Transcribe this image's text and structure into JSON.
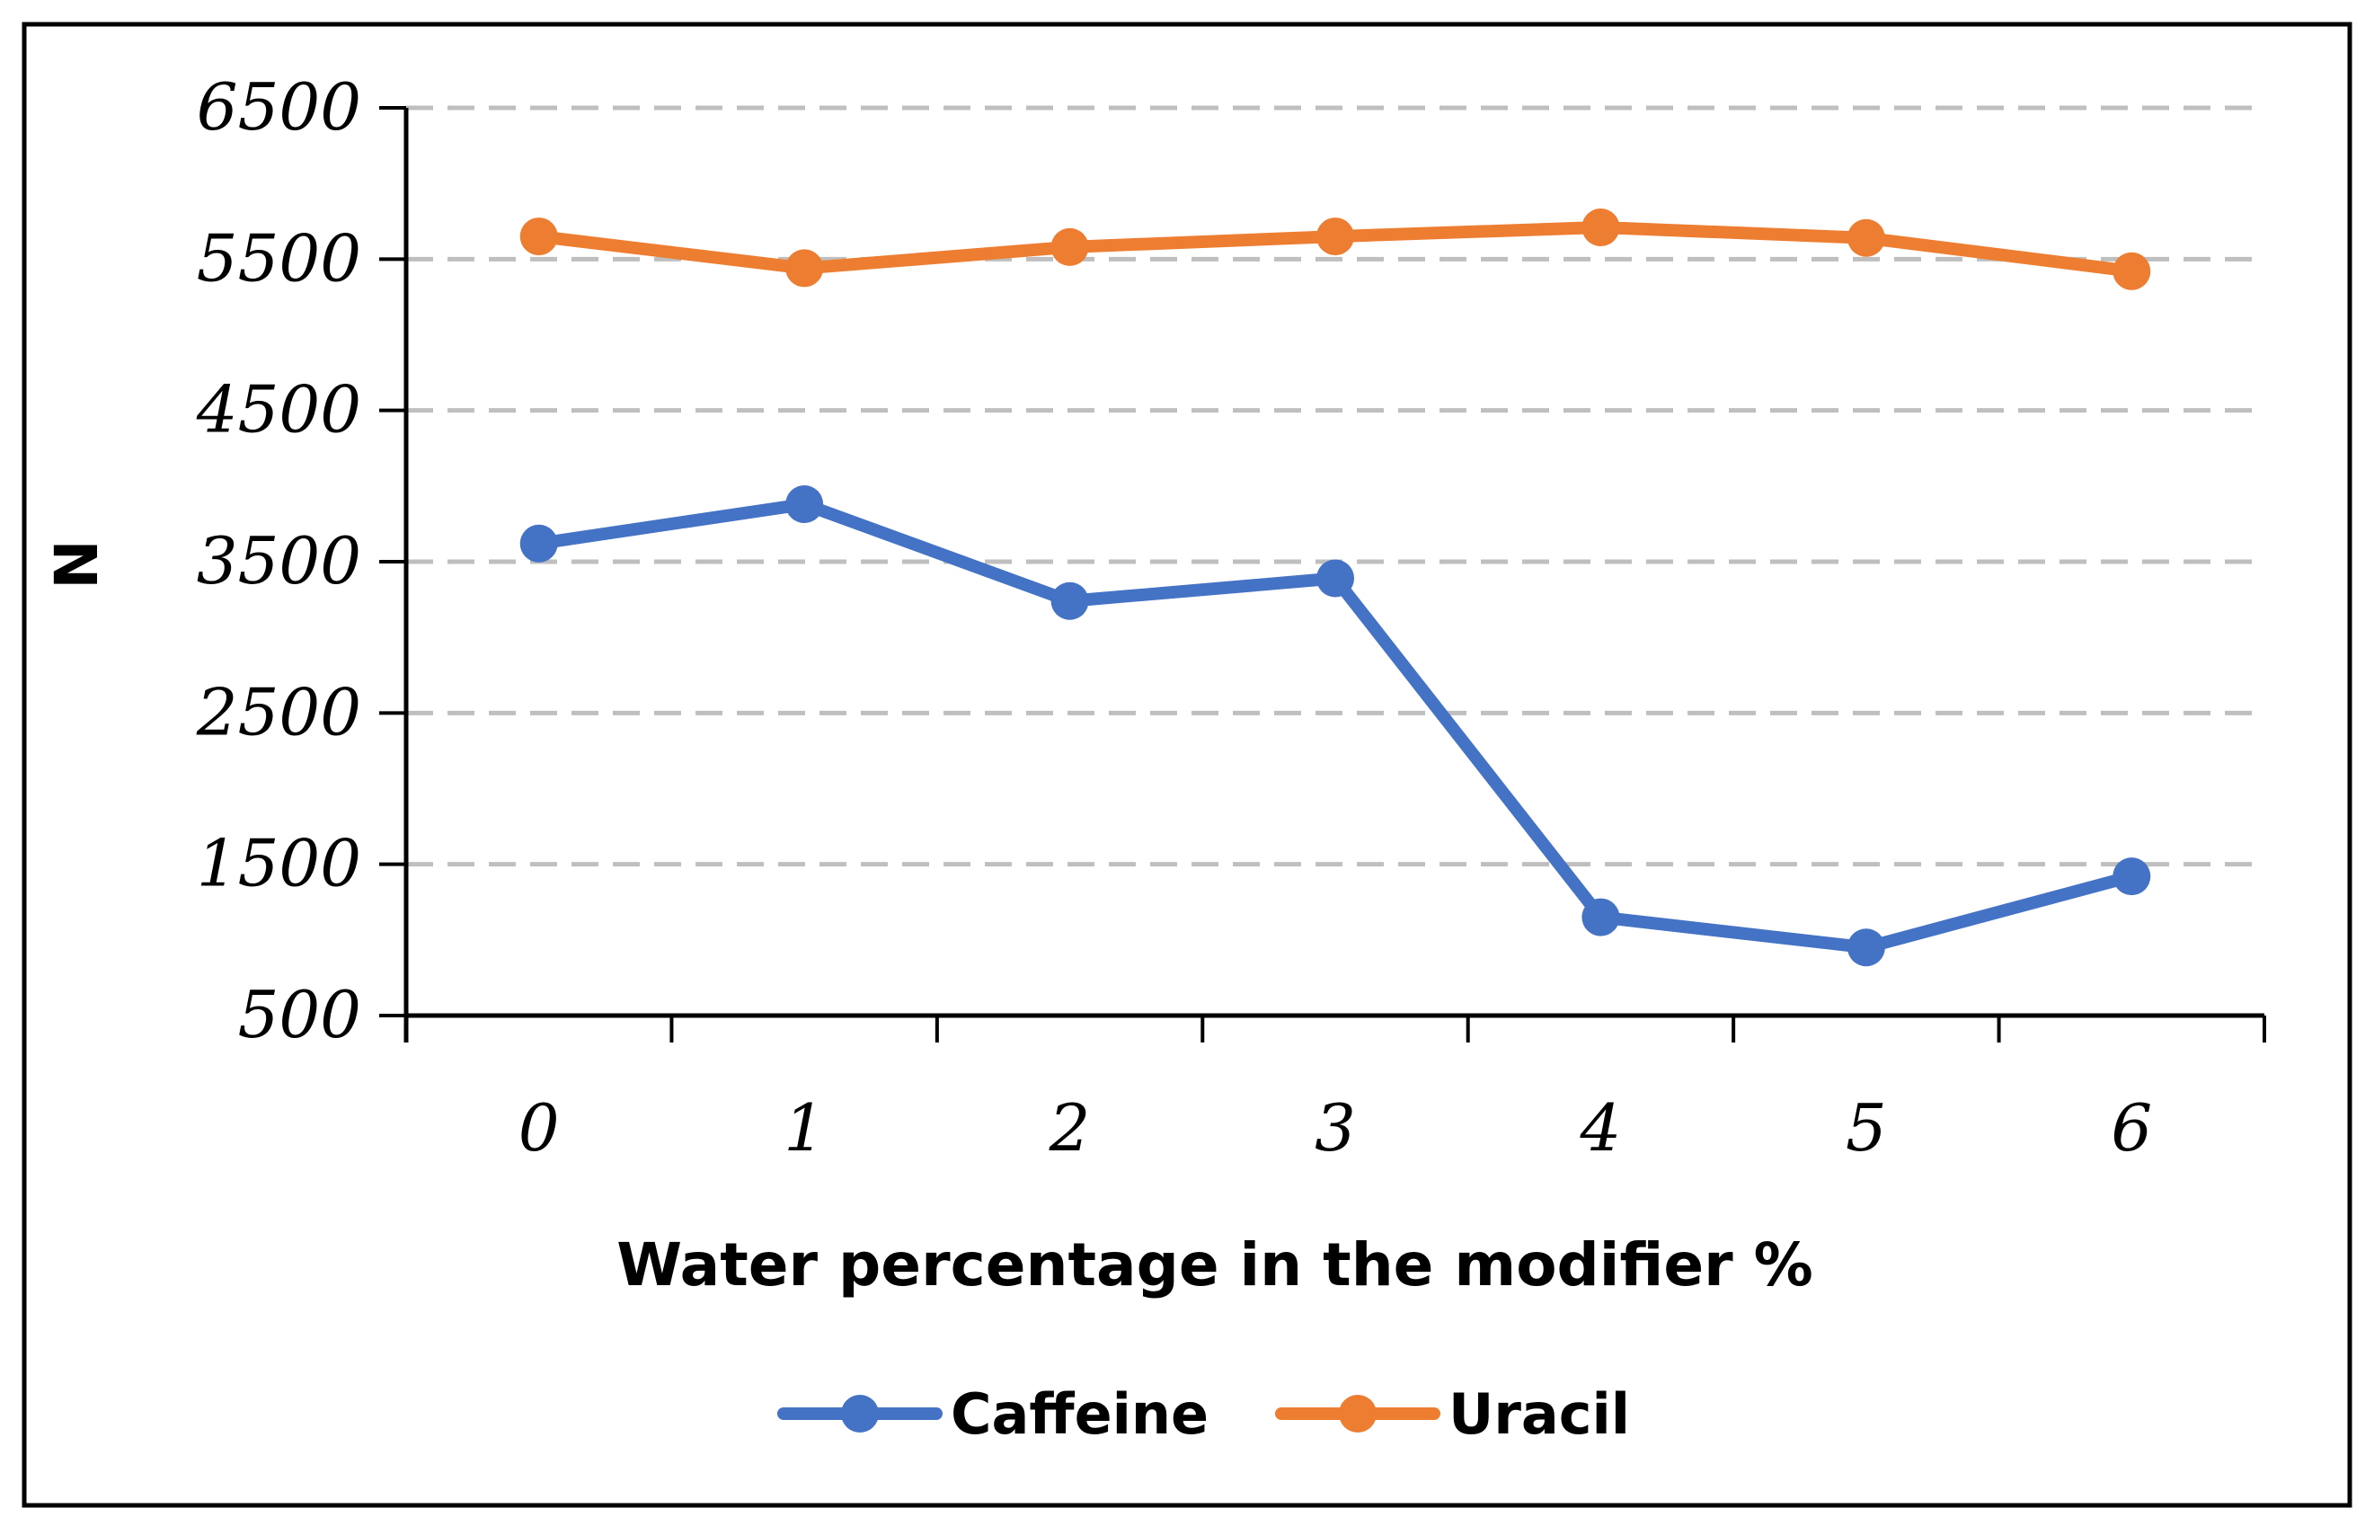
{
  "chart_data": {
    "type": "line",
    "title": "",
    "xlabel": "Water percentage in the modifier %",
    "ylabel": "N",
    "categories": [
      "0",
      "1",
      "2",
      "3",
      "4",
      "5",
      "6"
    ],
    "y_ticks": [
      "500",
      "1500",
      "2500",
      "3500",
      "4500",
      "5500",
      "6500"
    ],
    "ylim": [
      500,
      6500
    ],
    "grid": true,
    "legend_position": "bottom",
    "series": [
      {
        "name": "Caffeine",
        "color": "#4472C4",
        "values": [
          3620,
          3880,
          3240,
          3390,
          1150,
          950,
          1420
        ]
      },
      {
        "name": "Uracil",
        "color": "#ED7D31",
        "values": [
          5650,
          5440,
          5580,
          5650,
          5710,
          5640,
          5420
        ]
      }
    ]
  }
}
